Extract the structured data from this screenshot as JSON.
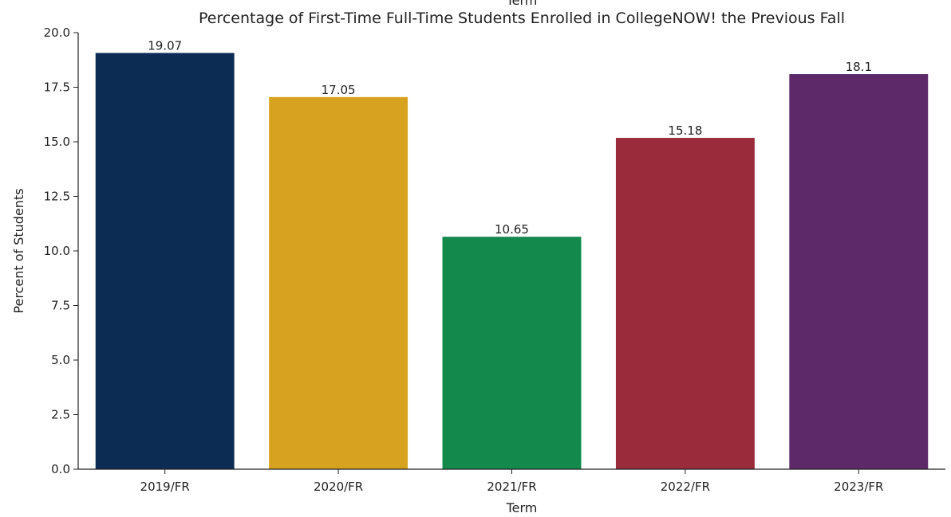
{
  "chart_data": {
    "type": "bar",
    "title": "Percentage of First-Time Full-Time Students Enrolled in CollegeNOW! the Previous Fall",
    "top_cut_label": "Term",
    "xlabel": "Term",
    "ylabel": "Percent of Students",
    "categories": [
      "2019/FR",
      "2020/FR",
      "2021/FR",
      "2022/FR",
      "2023/FR"
    ],
    "values": [
      19.07,
      17.05,
      10.65,
      15.18,
      18.1
    ],
    "value_labels": [
      "19.07",
      "17.05",
      "10.65",
      "15.18",
      "18.1"
    ],
    "colors": [
      "#0c2c54",
      "#d6a21f",
      "#13894c",
      "#992b3b",
      "#5e2968"
    ],
    "ylim": [
      0,
      20
    ],
    "yticks": [
      0,
      2.5,
      5,
      7.5,
      10,
      12.5,
      15,
      17.5,
      20
    ],
    "ytick_labels": [
      "0.0",
      "2.5",
      "5.0",
      "7.5",
      "10.0",
      "12.5",
      "15.0",
      "17.5",
      "20.0"
    ],
    "grid": false
  }
}
